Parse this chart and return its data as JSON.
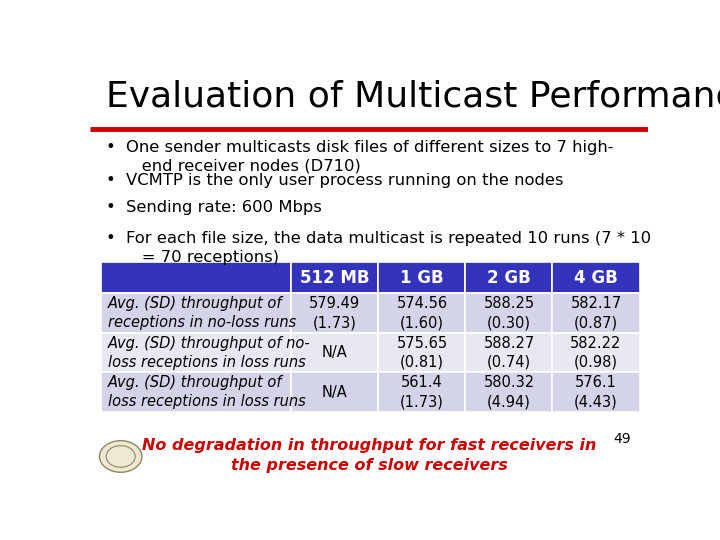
{
  "title": "Evaluation of Multicast Performance",
  "title_fontsize": 26,
  "title_color": "#000000",
  "bg_color": "#ffffff",
  "red_line_color": "#cc0000",
  "bullets": [
    "One sender multicasts disk files of different sizes to 7 high-\n   end receiver nodes (D710)",
    "VCMTP is the only user process running on the nodes",
    "Sending rate: 600 Mbps",
    "For each file size, the data multicast is repeated 10 runs (7 * 10\n   = 70 receptions)"
  ],
  "bullet_fontsize": 11.8,
  "bullet_color": "#000000",
  "table_header_bg": "#3333bb",
  "table_header_color": "#ffffff",
  "table_row_bg_1": "#d4d4e8",
  "table_row_bg_2": "#e8e8f2",
  "table_text_color": "#000000",
  "table_header_labels": [
    "",
    "512 MB",
    "1 GB",
    "2 GB",
    "4 GB"
  ],
  "table_rows": [
    {
      "label": "Avg. (SD) throughput of\nreceptions in no-loss runs",
      "values": [
        "579.49\n(1.73)",
        "574.56\n(1.60)",
        "588.25\n(0.30)",
        "582.17\n(0.87)"
      ]
    },
    {
      "label": "Avg. (SD) throughput of no-\nloss receptions in loss runs",
      "values": [
        "N/A",
        "575.65\n(0.81)",
        "588.27\n(0.74)",
        "582.22\n(0.98)"
      ]
    },
    {
      "label": "Avg. (SD) throughput of\nloss receptions in loss runs",
      "values": [
        "N/A",
        "561.4\n(1.73)",
        "580.32\n(4.94)",
        "576.1\n(4.43)"
      ]
    }
  ],
  "footer_text": "No degradation in throughput for fast receivers in\nthe presence of slow receivers",
  "footer_color": "#cc0000",
  "footer_fontsize": 11.5,
  "page_number": "49",
  "table_font_size": 10.5,
  "table_header_font_size": 12
}
